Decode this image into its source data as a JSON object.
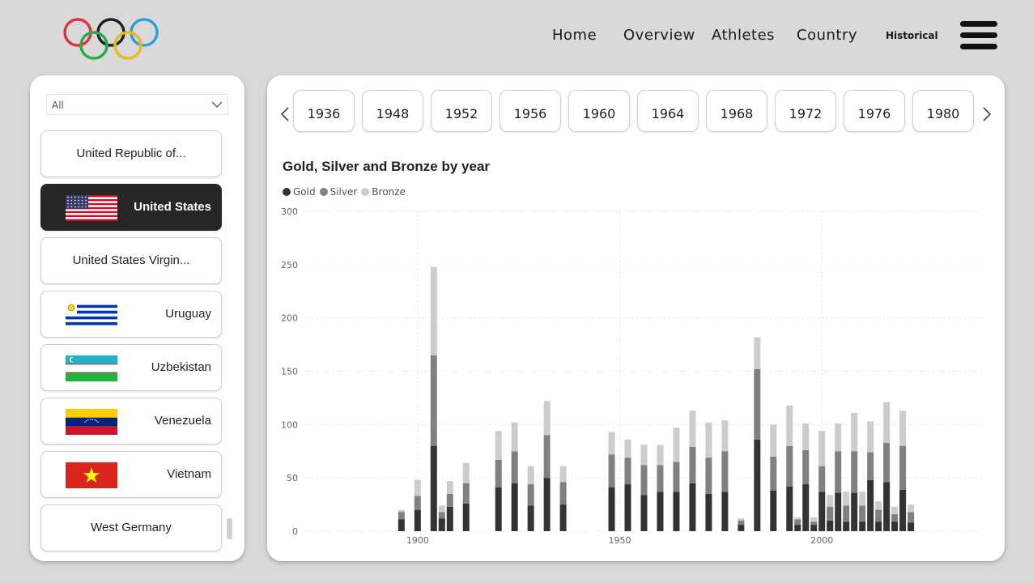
{
  "nav": {
    "items": [
      {
        "label": "Home",
        "x": 682
      },
      {
        "label": "Overview",
        "x": 770
      },
      {
        "label": "Athletes",
        "x": 879
      },
      {
        "label": "Country",
        "x": 984
      }
    ],
    "historical_label": "Historical"
  },
  "filter": {
    "selected": "All"
  },
  "countries": [
    {
      "name": "United Republic of...",
      "flag": "none",
      "selected": false
    },
    {
      "name": "United States",
      "flag": "usa",
      "selected": true
    },
    {
      "name": "United States Virgin...",
      "flag": "none",
      "selected": false
    },
    {
      "name": "Uruguay",
      "flag": "uruguay",
      "selected": false
    },
    {
      "name": "Uzbekistan",
      "flag": "uzbekistan",
      "selected": false
    },
    {
      "name": "Venezuela",
      "flag": "venezuela",
      "selected": false
    },
    {
      "name": "Vietnam",
      "flag": "vietnam",
      "selected": false
    },
    {
      "name": "West Germany",
      "flag": "none",
      "selected": false
    }
  ],
  "years": [
    "1936",
    "1948",
    "1952",
    "1956",
    "1960",
    "1964",
    "1968",
    "1972",
    "1976",
    "1980"
  ],
  "colors": {
    "gold": "#333333",
    "silver": "#808080",
    "bronze": "#cccccc"
  },
  "chart_data": {
    "type": "bar",
    "stacked": true,
    "title": "Gold, Silver and Bronze by year",
    "xlabel": "",
    "ylabel": "",
    "ylim": [
      0,
      300
    ],
    "yticks": [
      0,
      50,
      100,
      150,
      200,
      250,
      300
    ],
    "xticks": [
      1900,
      1950,
      2000
    ],
    "xlim": [
      1872,
      2040
    ],
    "legend_position": "top-left",
    "series_names": [
      "Gold",
      "Silver",
      "Bronze"
    ],
    "x": [
      1896,
      1900,
      1904,
      1906,
      1908,
      1912,
      1920,
      1924,
      1928,
      1932,
      1936,
      1948,
      1952,
      1956,
      1960,
      1964,
      1968,
      1972,
      1976,
      1980,
      1984,
      1988,
      1992,
      1994,
      1996,
      1998,
      2000,
      2002,
      2004,
      2006,
      2008,
      2010,
      2012,
      2014,
      2016,
      2018,
      2020,
      2022
    ],
    "series": [
      {
        "name": "Gold",
        "values": [
          11,
          20,
          80,
          12,
          23,
          26,
          41,
          45,
          24,
          50,
          25,
          41,
          44,
          34,
          37,
          37,
          45,
          35,
          37,
          6,
          86,
          38,
          42,
          6,
          44,
          6,
          37,
          10,
          36,
          9,
          36,
          9,
          48,
          9,
          46,
          9,
          39,
          8
        ]
      },
      {
        "name": "Silver",
        "values": [
          7,
          13,
          85,
          6,
          12,
          19,
          26,
          30,
          20,
          40,
          21,
          31,
          25,
          28,
          25,
          28,
          34,
          34,
          38,
          4,
          66,
          32,
          38,
          5,
          32,
          3,
          24,
          13,
          39,
          15,
          39,
          15,
          26,
          11,
          37,
          7,
          41,
          10
        ]
      },
      {
        "name": "Bronze",
        "values": [
          2,
          15,
          83,
          6,
          12,
          19,
          27,
          27,
          17,
          32,
          15,
          21,
          17,
          19,
          19,
          32,
          34,
          33,
          29,
          2,
          30,
          30,
          38,
          2,
          25,
          4,
          33,
          11,
          26,
          13,
          36,
          13,
          29,
          8,
          38,
          7,
          33,
          7
        ]
      }
    ]
  }
}
